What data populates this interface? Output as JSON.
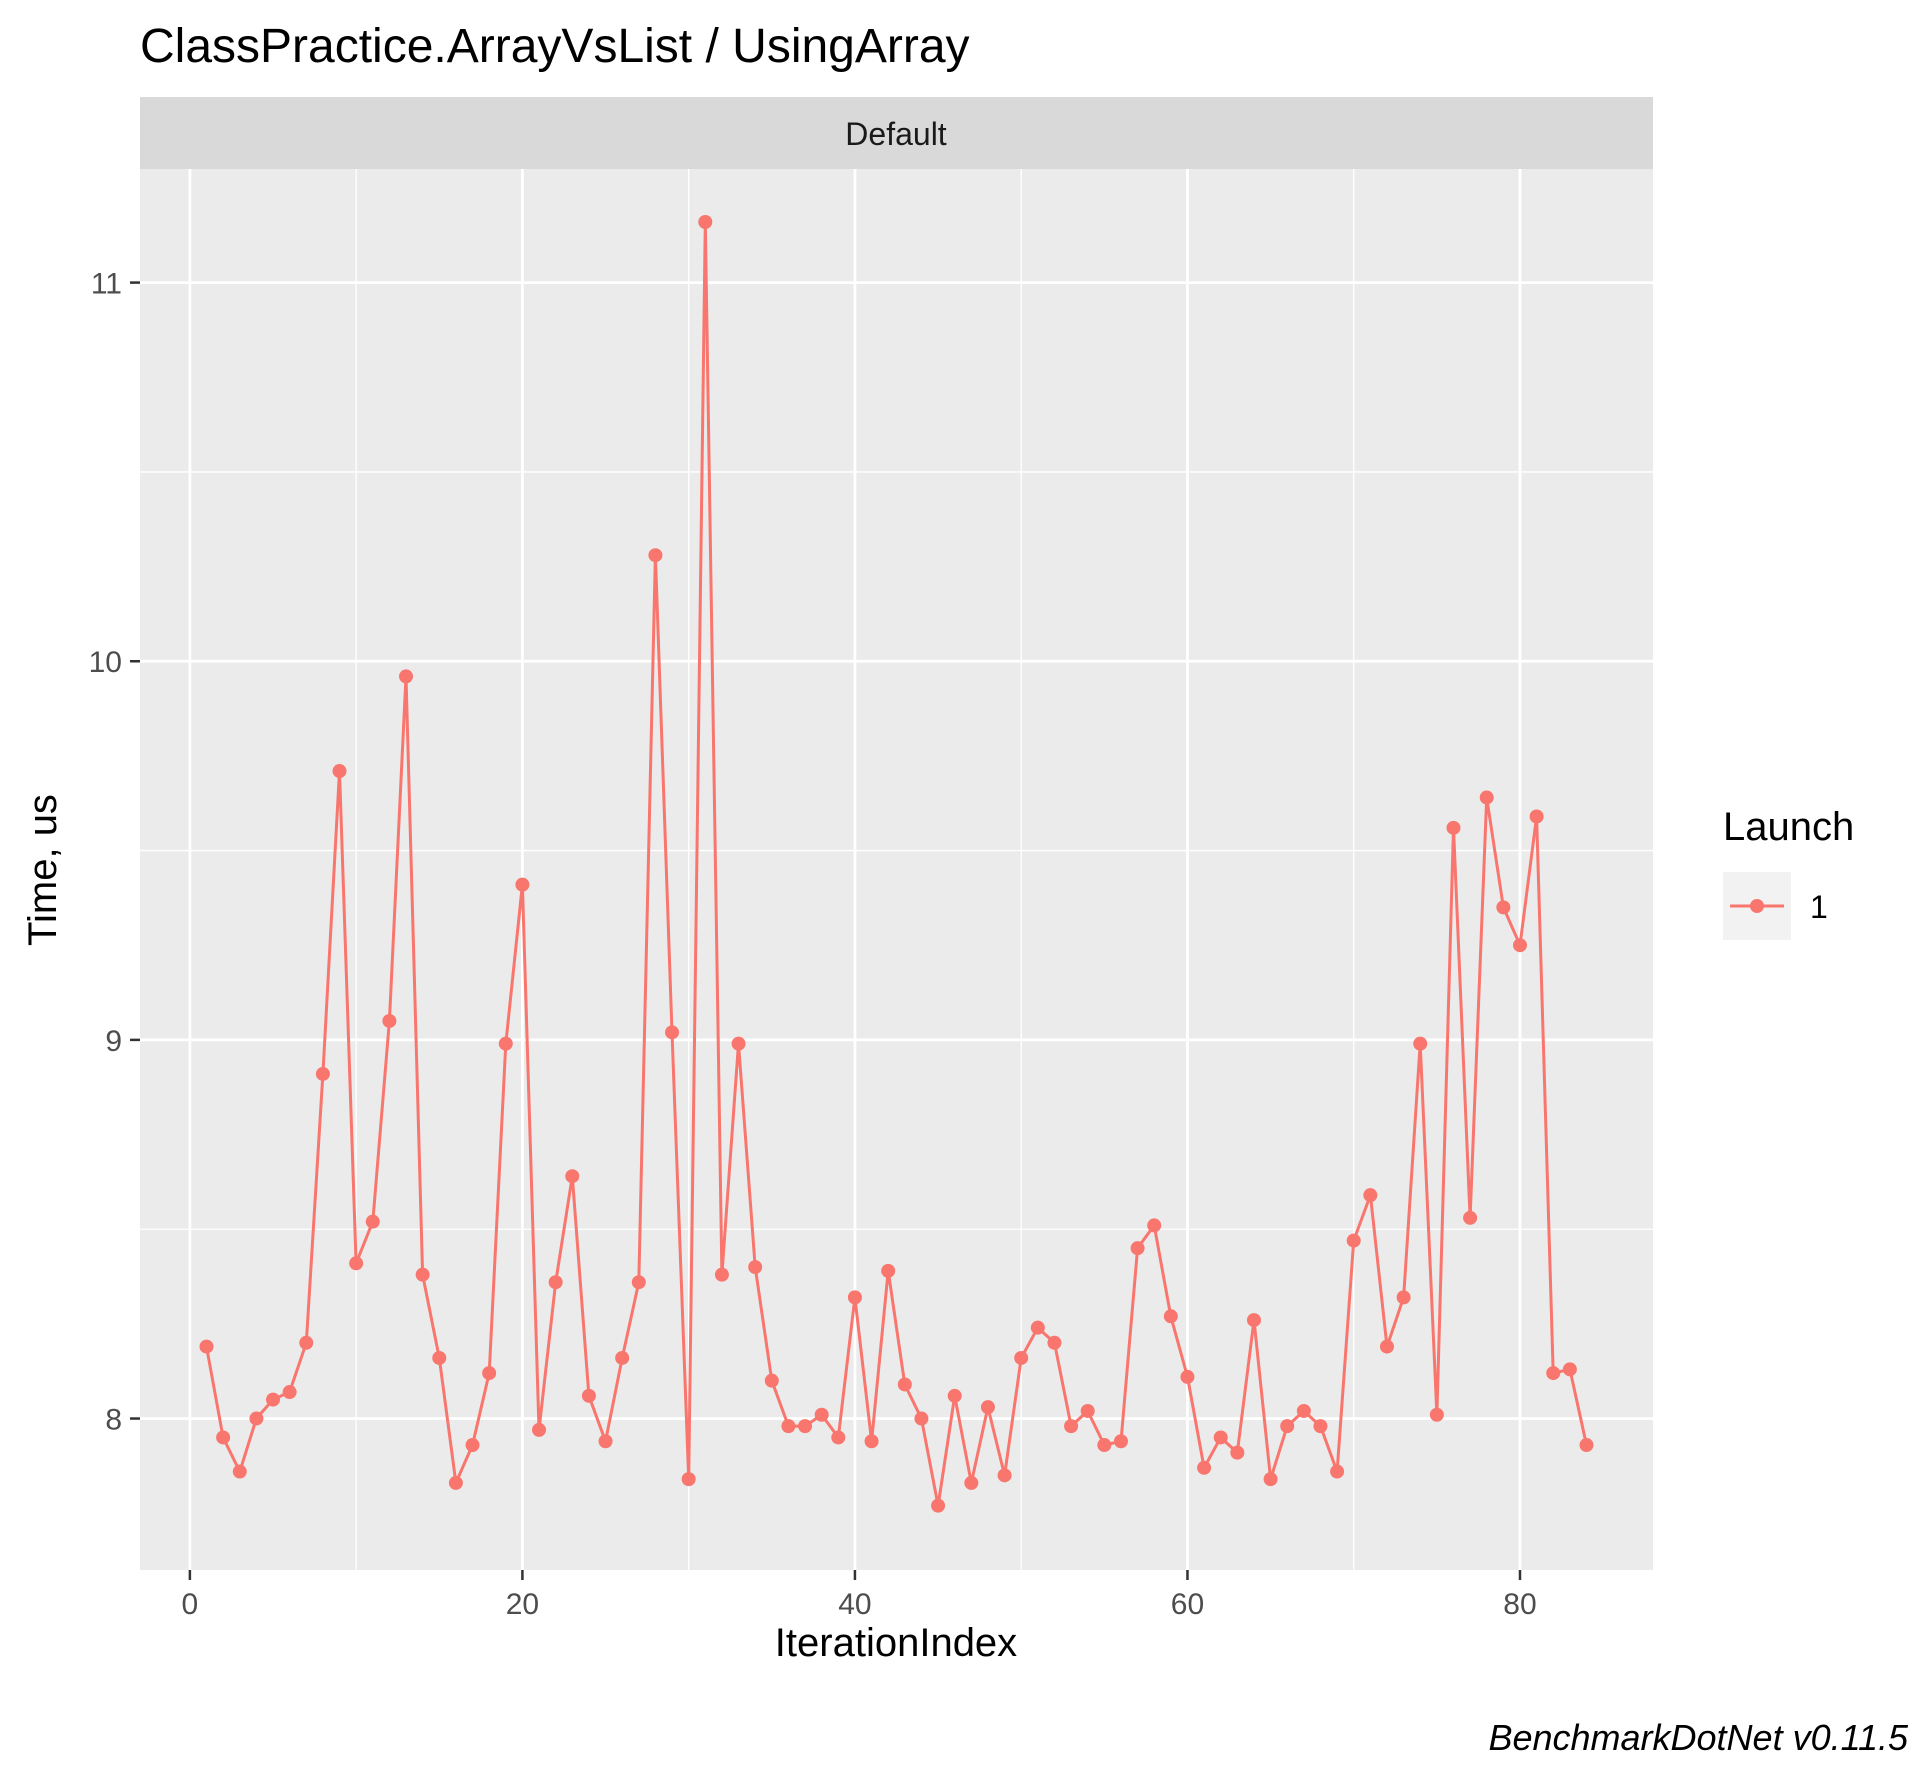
{
  "chart_data": {
    "type": "line",
    "title": "ClassPractice.ArrayVsList / UsingArray",
    "facet_label": "Default",
    "xlabel": "IterationIndex",
    "ylabel": "Time, us",
    "caption": "BenchmarkDotNet v0.11.5",
    "xlim": [
      -3,
      88
    ],
    "ylim": [
      7.6,
      11.3
    ],
    "x_ticks": [
      0,
      20,
      40,
      60,
      80
    ],
    "x_tick_labels": [
      "0",
      "20",
      "40",
      "60",
      "80"
    ],
    "y_ticks": [
      8,
      9,
      10,
      11
    ],
    "y_tick_labels": [
      "8",
      "9",
      "10",
      "11"
    ],
    "grid": true,
    "legend": {
      "title": "Launch",
      "placement": "right",
      "entries": [
        "1"
      ]
    },
    "series": [
      {
        "name": "1",
        "color": "#F8766D",
        "x": [
          1,
          2,
          3,
          4,
          5,
          6,
          7,
          8,
          9,
          10,
          11,
          12,
          13,
          14,
          15,
          16,
          17,
          18,
          19,
          20,
          21,
          22,
          23,
          24,
          25,
          26,
          27,
          28,
          29,
          30,
          31,
          32,
          33,
          34,
          35,
          36,
          37,
          38,
          39,
          40,
          41,
          42,
          43,
          44,
          45,
          46,
          47,
          48,
          49,
          50,
          51,
          52,
          53,
          54,
          55,
          56,
          57,
          58,
          59,
          60,
          61,
          62,
          63,
          64,
          65,
          66,
          67,
          68,
          69,
          70,
          71,
          72,
          73,
          74,
          75,
          76,
          77,
          78,
          79,
          80,
          81,
          82,
          83,
          84
        ],
        "values": [
          8.19,
          7.95,
          7.86,
          8.0,
          8.05,
          8.07,
          8.2,
          8.91,
          9.71,
          8.41,
          8.52,
          9.05,
          9.96,
          8.38,
          8.16,
          7.83,
          7.93,
          8.12,
          8.99,
          9.41,
          7.97,
          8.36,
          8.64,
          8.06,
          7.94,
          8.16,
          8.36,
          10.28,
          9.02,
          7.84,
          11.16,
          8.38,
          8.99,
          8.4,
          8.1,
          7.98,
          7.98,
          8.01,
          7.95,
          8.32,
          7.94,
          8.39,
          8.09,
          8.0,
          7.77,
          8.06,
          7.83,
          8.03,
          7.85,
          8.16,
          8.24,
          8.2,
          7.98,
          8.02,
          7.93,
          7.94,
          8.45,
          8.51,
          8.27,
          8.11,
          7.87,
          7.95,
          7.91,
          8.26,
          7.84,
          7.98,
          8.02,
          7.98,
          7.86,
          8.47,
          8.59,
          8.19,
          8.32,
          8.99,
          8.01,
          9.56,
          8.53,
          9.64,
          9.35,
          9.25,
          9.59,
          8.12,
          8.13,
          7.93
        ]
      }
    ]
  }
}
